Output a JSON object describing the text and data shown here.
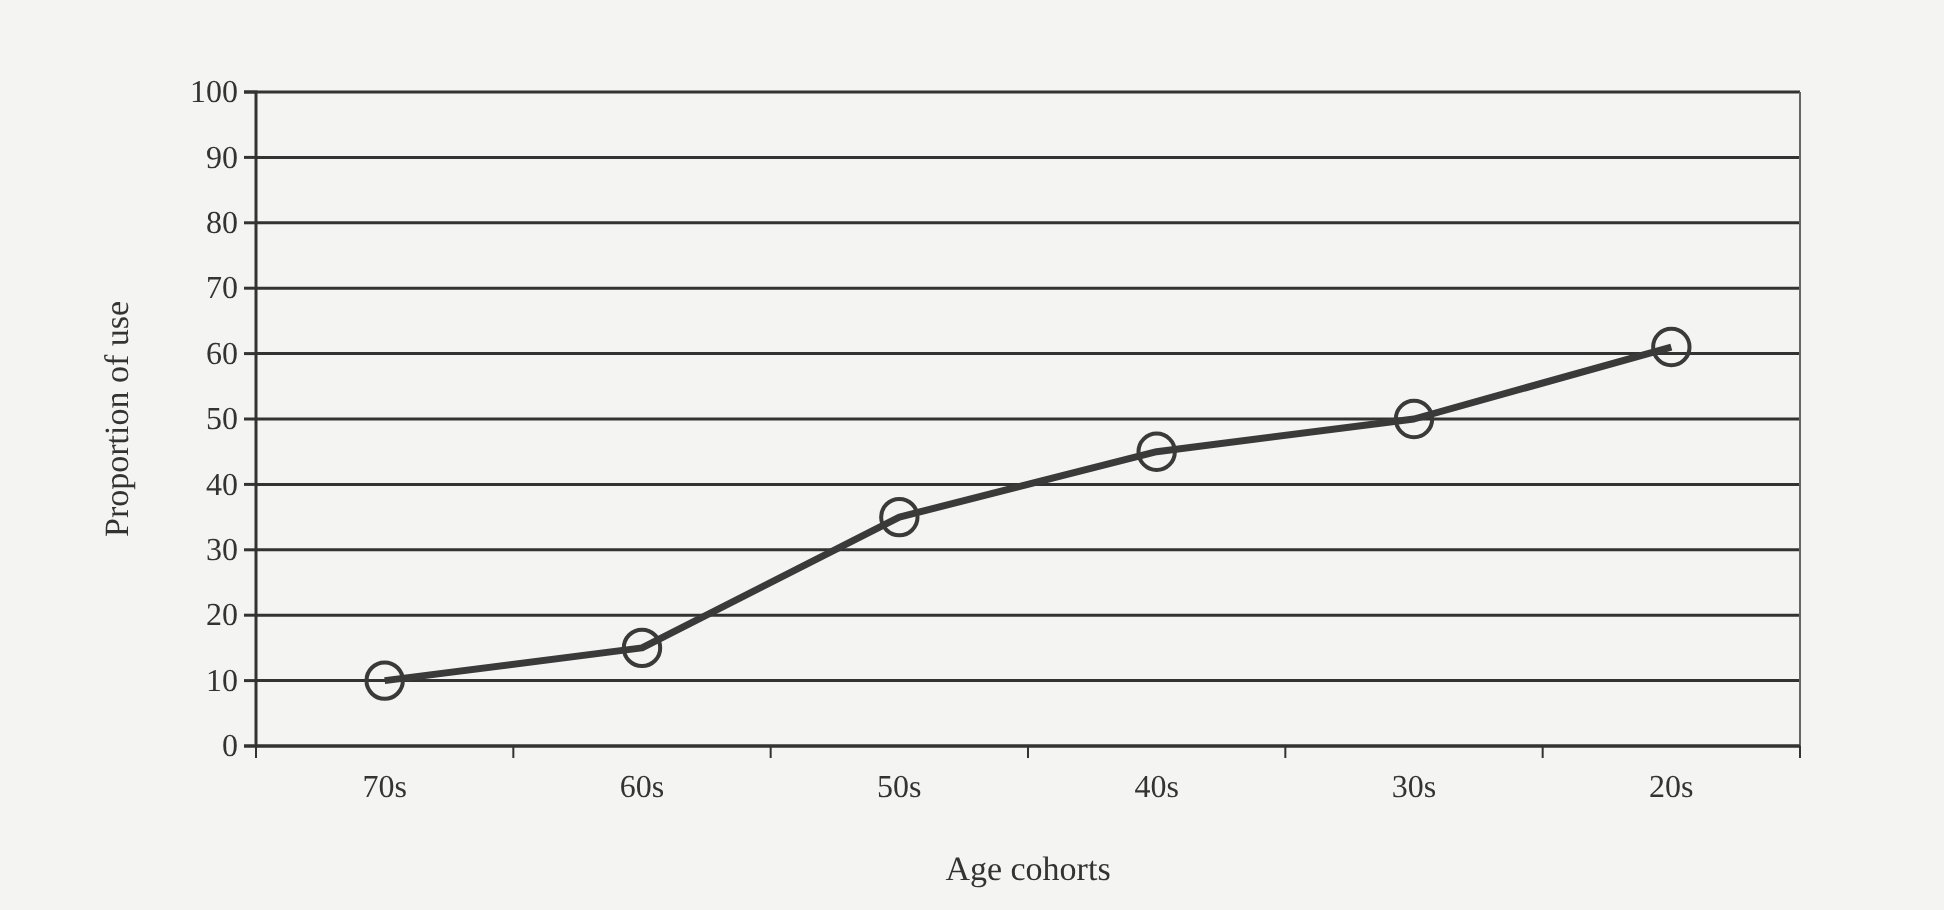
{
  "chart_data": {
    "type": "line",
    "xlabel": "Age cohorts",
    "ylabel": "Proportion of use",
    "categories": [
      "70s",
      "60s",
      "50s",
      "40s",
      "30s",
      "20s"
    ],
    "series": [
      {
        "color": "#3a3a3a",
        "values": [
          10,
          15,
          35,
          45,
          50,
          61
        ]
      }
    ],
    "ylim": [
      0,
      100
    ],
    "yticks": [
      0,
      10,
      20,
      30,
      40,
      50,
      60,
      70,
      80,
      90,
      100
    ],
    "grid": "y",
    "marker": "circle",
    "line_style": "solid"
  }
}
